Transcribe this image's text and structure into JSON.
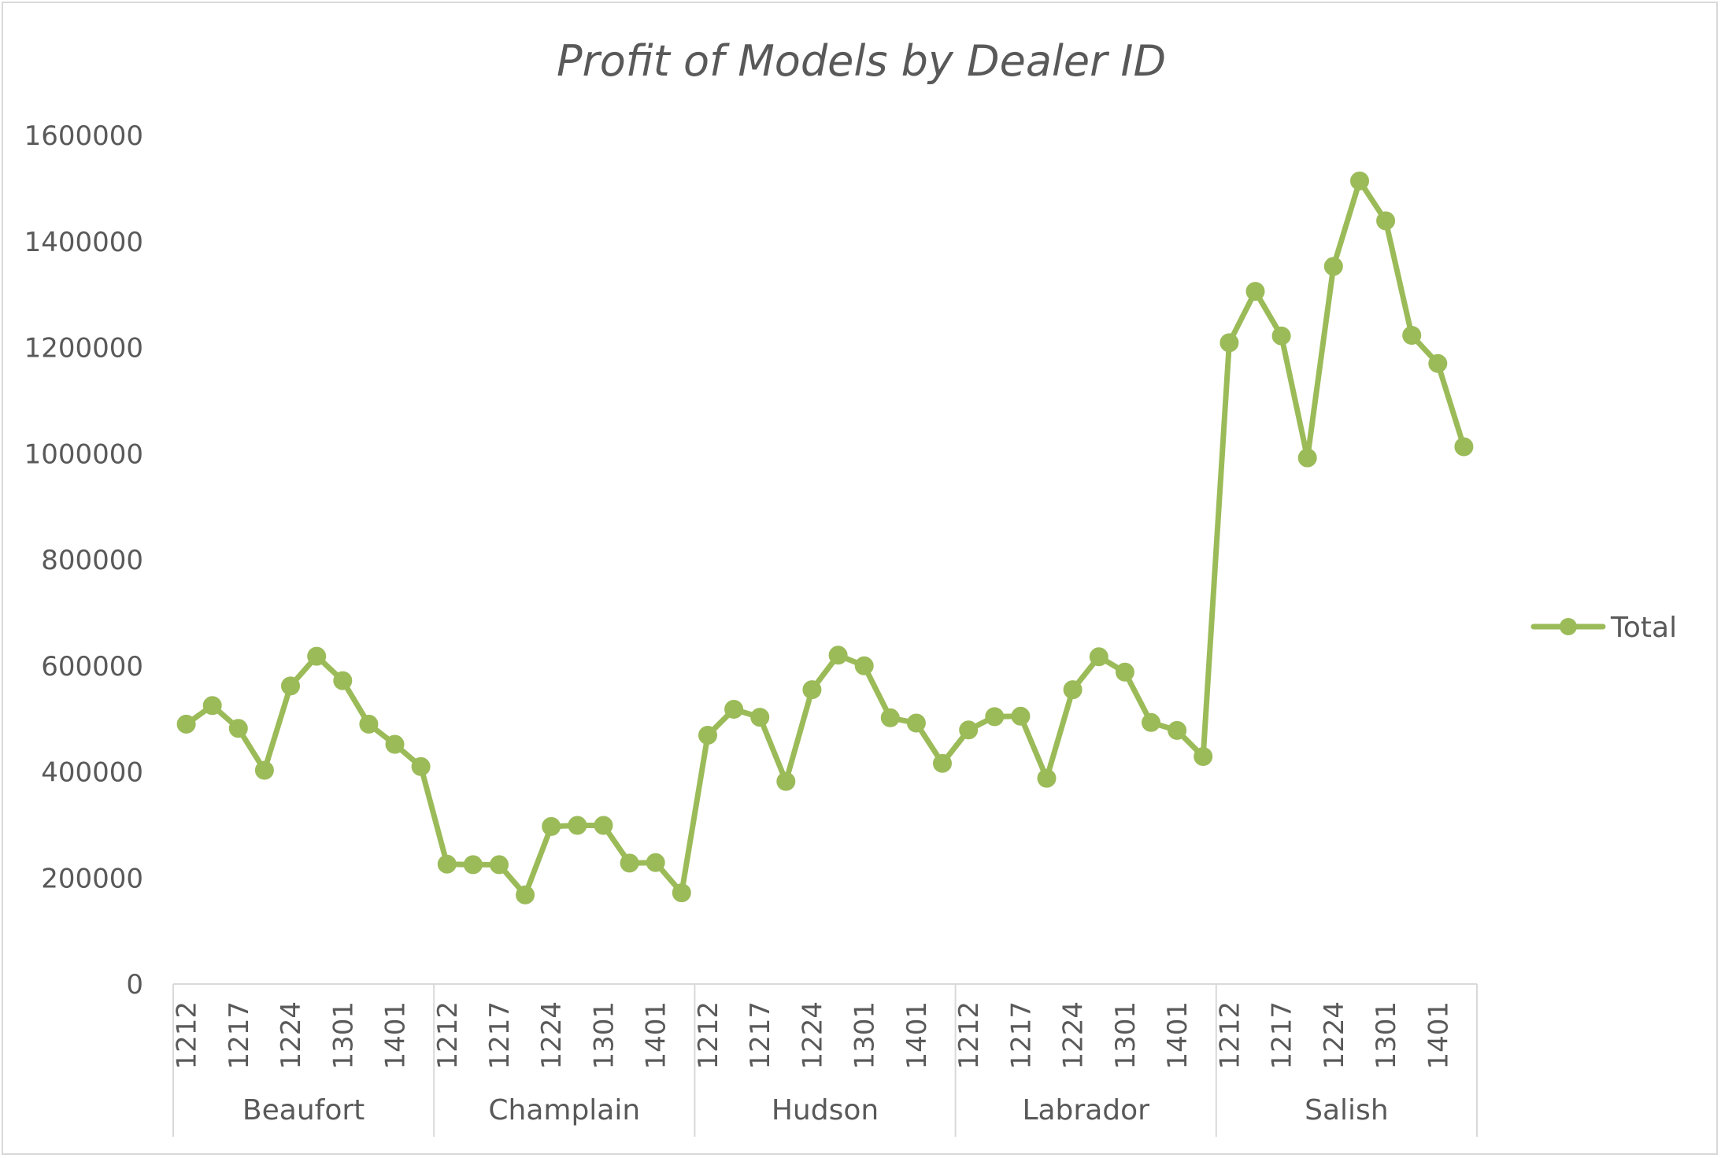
{
  "chart_data": {
    "type": "line",
    "title": "Profit of Models by Dealer ID",
    "xlabel": "",
    "ylabel": "",
    "ylim": [
      0,
      1600000
    ],
    "yticks": [
      "0",
      "200000",
      "400000",
      "600000",
      "800000",
      "1000000",
      "1200000",
      "1400000",
      "1600000"
    ],
    "grid": false,
    "legend": "right",
    "color": "#9BBB59",
    "groups": [
      {
        "name": "Beaufort",
        "categories": [
          "1212",
          "",
          "1217",
          "",
          "1224",
          "",
          "1301",
          "",
          "1401",
          ""
        ],
        "values": [
          490000,
          525000,
          482000,
          403000,
          562000,
          618000,
          572000,
          490000,
          452000,
          410000
        ]
      },
      {
        "name": "Champlain",
        "categories": [
          "1212",
          "",
          "1217",
          "",
          "1224",
          "",
          "1301",
          "",
          "1401",
          ""
        ],
        "values": [
          226000,
          225000,
          225000,
          168000,
          297000,
          299000,
          299000,
          228000,
          229000,
          172000
        ]
      },
      {
        "name": "Hudson",
        "categories": [
          "1212",
          "",
          "1217",
          "",
          "1224",
          "",
          "1301",
          "",
          "1401",
          ""
        ],
        "values": [
          469000,
          518000,
          503000,
          382000,
          555000,
          620000,
          600000,
          502000,
          492000,
          416000
        ]
      },
      {
        "name": "Labrador",
        "categories": [
          "1212",
          "",
          "1217",
          "",
          "1224",
          "",
          "1301",
          "",
          "1401",
          ""
        ],
        "values": [
          479000,
          504000,
          505000,
          388000,
          555000,
          617000,
          588000,
          493000,
          478000,
          429000
        ]
      },
      {
        "name": "Salish",
        "categories": [
          "1212",
          "",
          "1217",
          "",
          "1224",
          "",
          "1301",
          "",
          "1401",
          ""
        ],
        "values": [
          1209000,
          1306000,
          1222000,
          992000,
          1353000,
          1514000,
          1439000,
          1223000,
          1170000,
          1013000
        ]
      }
    ],
    "series": [
      {
        "name": "Total"
      }
    ]
  }
}
